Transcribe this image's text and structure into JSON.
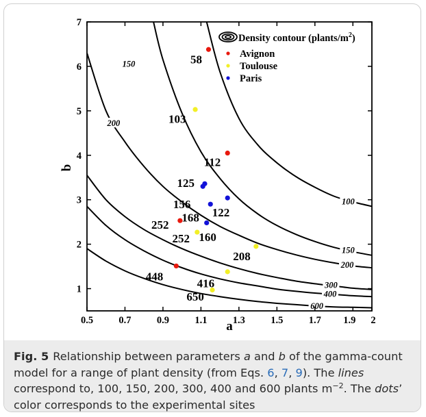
{
  "chart_data": {
    "type": "contour",
    "xlabel": "a",
    "ylabel": "b",
    "xlim": [
      0.5,
      2
    ],
    "ylim": [
      0.5,
      7
    ],
    "xticks": [
      "0.5",
      "0.7",
      "0.9",
      "1.1",
      "1.3",
      "1.5",
      "1.7",
      "1.9",
      "2"
    ],
    "yticks": [
      "1",
      "2",
      "3",
      "4",
      "5",
      "6",
      "7"
    ],
    "contours": [
      {
        "level": 100,
        "label": "100",
        "points": [
          [
            1.13,
            7
          ],
          [
            1.2,
            5.88
          ],
          [
            1.3,
            4.83
          ],
          [
            1.4,
            4.23
          ],
          [
            1.5,
            3.83
          ],
          [
            1.6,
            3.52
          ],
          [
            1.7,
            3.28
          ],
          [
            1.8,
            3.08
          ],
          [
            1.9,
            2.95
          ],
          [
            2.0,
            2.85
          ]
        ]
      },
      {
        "level": 150,
        "label": "150",
        "points": [
          [
            0.85,
            7
          ],
          [
            0.9,
            6.15
          ],
          [
            1.0,
            4.95
          ],
          [
            1.1,
            4.08
          ],
          [
            1.2,
            3.48
          ],
          [
            1.3,
            3.02
          ],
          [
            1.4,
            2.68
          ],
          [
            1.5,
            2.42
          ],
          [
            1.6,
            2.22
          ],
          [
            1.7,
            2.06
          ],
          [
            1.8,
            1.93
          ],
          [
            1.9,
            1.83
          ],
          [
            2.0,
            1.75
          ]
        ]
      },
      {
        "level": 200,
        "label": "200",
        "points": [
          [
            0.5,
            6.3
          ],
          [
            0.6,
            5.0
          ],
          [
            0.7,
            4.3
          ],
          [
            0.8,
            3.75
          ],
          [
            0.9,
            3.3
          ],
          [
            1.0,
            2.95
          ],
          [
            1.1,
            2.65
          ],
          [
            1.2,
            2.4
          ],
          [
            1.3,
            2.2
          ],
          [
            1.4,
            2.02
          ],
          [
            1.5,
            1.88
          ],
          [
            1.6,
            1.76
          ],
          [
            1.7,
            1.66
          ],
          [
            1.8,
            1.58
          ],
          [
            1.9,
            1.51
          ],
          [
            2.0,
            1.47
          ]
        ]
      },
      {
        "level": 300,
        "label": "300",
        "points": [
          [
            0.5,
            3.55
          ],
          [
            0.6,
            3.0
          ],
          [
            0.7,
            2.62
          ],
          [
            0.8,
            2.33
          ],
          [
            0.9,
            2.1
          ],
          [
            1.0,
            1.9
          ],
          [
            1.1,
            1.73
          ],
          [
            1.2,
            1.58
          ],
          [
            1.3,
            1.45
          ],
          [
            1.4,
            1.34
          ],
          [
            1.5,
            1.25
          ],
          [
            1.6,
            1.17
          ],
          [
            1.7,
            1.11
          ],
          [
            1.8,
            1.06
          ],
          [
            1.9,
            1.01
          ],
          [
            2.0,
            0.98
          ]
        ]
      },
      {
        "level": 400,
        "label": "400",
        "points": [
          [
            0.5,
            2.85
          ],
          [
            0.6,
            2.42
          ],
          [
            0.7,
            2.1
          ],
          [
            0.8,
            1.85
          ],
          [
            0.9,
            1.64
          ],
          [
            1.0,
            1.47
          ],
          [
            1.1,
            1.33
          ],
          [
            1.2,
            1.22
          ],
          [
            1.3,
            1.13
          ],
          [
            1.4,
            1.06
          ],
          [
            1.5,
            0.99
          ],
          [
            1.6,
            0.94
          ],
          [
            1.7,
            0.9
          ],
          [
            1.8,
            0.87
          ],
          [
            1.9,
            0.84
          ],
          [
            2.0,
            0.82
          ]
        ]
      },
      {
        "level": 600,
        "label": "600",
        "points": [
          [
            0.5,
            1.9
          ],
          [
            0.6,
            1.62
          ],
          [
            0.7,
            1.4
          ],
          [
            0.8,
            1.23
          ],
          [
            0.9,
            1.09
          ],
          [
            1.0,
            0.98
          ],
          [
            1.1,
            0.89
          ],
          [
            1.2,
            0.82
          ],
          [
            1.3,
            0.76
          ],
          [
            1.4,
            0.71
          ],
          [
            1.5,
            0.67
          ],
          [
            1.6,
            0.64
          ],
          [
            1.7,
            0.61
          ],
          [
            1.8,
            0.59
          ],
          [
            1.9,
            0.58
          ],
          [
            2.0,
            0.57
          ]
        ]
      }
    ],
    "contour_labels": [
      {
        "text": "100",
        "x": 1.875,
        "y": 2.96
      },
      {
        "text": "150",
        "x": 0.72,
        "y": 6.05
      },
      {
        "text": "150",
        "x": 1.875,
        "y": 1.86
      },
      {
        "text": "200",
        "x": 0.64,
        "y": 4.72
      },
      {
        "text": "200",
        "x": 1.87,
        "y": 1.53
      },
      {
        "text": "300",
        "x": 1.785,
        "y": 1.08
      },
      {
        "text": "400",
        "x": 1.78,
        "y": 0.88
      },
      {
        "text": "600",
        "x": 1.71,
        "y": 0.61
      }
    ],
    "series": [
      {
        "name": "Avignon",
        "color": "#e8190e",
        "points": [
          {
            "x": 1.14,
            "y": 6.38,
            "label": "58"
          },
          {
            "x": 1.24,
            "y": 4.05,
            "label": "112"
          },
          {
            "x": 0.99,
            "y": 2.53,
            "label": "252"
          },
          {
            "x": 0.97,
            "y": 1.51,
            "label": "448"
          }
        ]
      },
      {
        "name": "Toulouse",
        "color": "#f2ef27",
        "points": [
          {
            "x": 1.07,
            "y": 5.03,
            "label": "103"
          },
          {
            "x": 1.08,
            "y": 2.27,
            "label": "252"
          },
          {
            "x": 1.39,
            "y": 1.95,
            "label": "208"
          },
          {
            "x": 1.24,
            "y": 1.38,
            "label": "416"
          },
          {
            "x": 1.16,
            "y": 0.97,
            "label": "650"
          }
        ]
      },
      {
        "name": "Paris",
        "color": "#1212d8",
        "points": [
          {
            "x": 1.12,
            "y": 3.36,
            "label": "125"
          },
          {
            "x": 1.11,
            "y": 3.3,
            "label": ""
          },
          {
            "x": 1.15,
            "y": 2.9,
            "label": "156"
          },
          {
            "x": 1.24,
            "y": 3.04,
            "label": "122"
          },
          {
            "x": 1.13,
            "y": 2.48,
            "label": "168"
          }
        ]
      }
    ],
    "point_labels": [
      {
        "text": "58",
        "x": 1.075,
        "y": 6.16
      },
      {
        "text": "112",
        "x": 1.16,
        "y": 3.85
      },
      {
        "text": "103",
        "x": 0.975,
        "y": 4.82
      },
      {
        "text": "125",
        "x": 1.02,
        "y": 3.38
      },
      {
        "text": "156",
        "x": 1.0,
        "y": 2.9
      },
      {
        "text": "122",
        "x": 1.205,
        "y": 2.72
      },
      {
        "text": "168",
        "x": 1.045,
        "y": 2.6
      },
      {
        "text": "252",
        "x": 0.885,
        "y": 2.44
      },
      {
        "text": "252",
        "x": 0.995,
        "y": 2.13
      },
      {
        "text": "160",
        "x": 1.135,
        "y": 2.16
      },
      {
        "text": "208",
        "x": 1.315,
        "y": 1.73
      },
      {
        "text": "448",
        "x": 0.855,
        "y": 1.28
      },
      {
        "text": "416",
        "x": 1.125,
        "y": 1.12
      },
      {
        "text": "650",
        "x": 1.07,
        "y": 0.82
      }
    ],
    "legend": {
      "placement": "top-right",
      "contour_entry": "Density contour (plants/m",
      "contour_entry_sup": "2",
      "contour_entry_end": ")",
      "entries": [
        {
          "label": "Avignon",
          "color": "#e8190e"
        },
        {
          "label": "Toulouse",
          "color": "#f2ef27"
        },
        {
          "label": "Paris",
          "color": "#1212d8"
        }
      ]
    }
  },
  "caption": {
    "figure_label": "Fig. 5",
    "part1": "Relationship between parameters ",
    "param_a": "a",
    "part2": " and ",
    "param_b": "b",
    "part3": " of the gamma-count model for a range of plant density (from Eqs. ",
    "eq_6": "6",
    "sep_1": ", ",
    "eq_7": "7",
    "sep_2": ", ",
    "eq_9": "9",
    "part4": "). The ",
    "lines_word": "lines",
    "part5": " correspond to, 100, 150, 200, 300, 400 and 600 plants m",
    "sup": "−2",
    "part6": ". The ",
    "dots_word": "dots",
    "part7": "’ color corresponds to the experimental sites"
  }
}
